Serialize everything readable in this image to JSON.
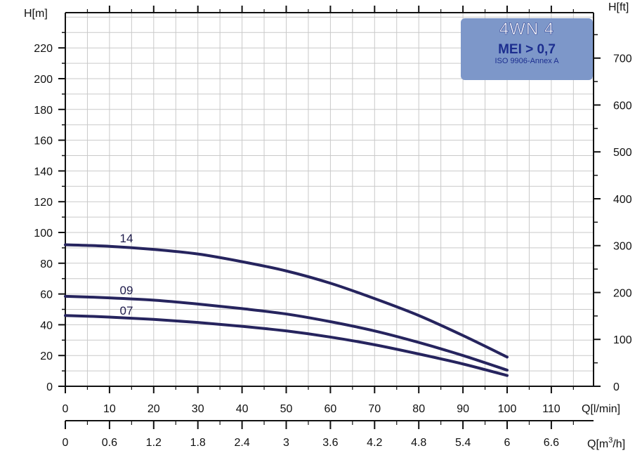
{
  "chart_data": {
    "type": "line",
    "title": "",
    "badge": {
      "model": "4WN 4",
      "mei": "MEI > 0,7",
      "standard": "ISO 9906-Annex A",
      "color": "#7d97c9"
    },
    "ylabel_left": "H[m]",
    "ylabel_right": "H[ft]",
    "xlabel_primary": "Q[l/min]",
    "xlabel_secondary_prefix": "Q[m",
    "xlabel_secondary_sup": "3",
    "xlabel_secondary_suffix": "/h]",
    "ylim": [
      0,
      232
    ],
    "xlim": [
      0,
      120
    ],
    "grid": true,
    "y_ticks": [
      "0",
      "20",
      "40",
      "60",
      "80",
      "100",
      "120",
      "140",
      "160",
      "180",
      "200",
      "220"
    ],
    "y_ft_ticks": [
      "0",
      "100",
      "200",
      "300",
      "400",
      "500",
      "600",
      "700"
    ],
    "x_ticks": [
      "0",
      "10",
      "20",
      "30",
      "40",
      "50",
      "60",
      "70",
      "80",
      "90",
      "100",
      "110"
    ],
    "x_m3h_ticks": [
      "0",
      "0.6",
      "1.2",
      "1.8",
      "2.4",
      "3",
      "3.6",
      "4.2",
      "4.8",
      "5.4",
      "6",
      "6.6"
    ],
    "line_color": "#26245e",
    "series": [
      {
        "name": "14",
        "x": [
          0,
          10,
          20,
          30,
          40,
          50,
          60,
          70,
          80,
          90,
          100
        ],
        "y": [
          92,
          91,
          89,
          86,
          81,
          75,
          67,
          57,
          46,
          33,
          19
        ]
      },
      {
        "name": "09",
        "x": [
          0,
          10,
          20,
          30,
          40,
          50,
          60,
          70,
          80,
          90,
          100
        ],
        "y": [
          58.5,
          57.5,
          56,
          53.5,
          50.5,
          47,
          42,
          36,
          28.5,
          20,
          10.5
        ]
      },
      {
        "name": "07",
        "x": [
          0,
          10,
          20,
          30,
          40,
          50,
          60,
          70,
          80,
          90,
          100
        ],
        "y": [
          46,
          45,
          43.5,
          41.5,
          39,
          36,
          32,
          27,
          21,
          14.5,
          7
        ]
      }
    ]
  }
}
